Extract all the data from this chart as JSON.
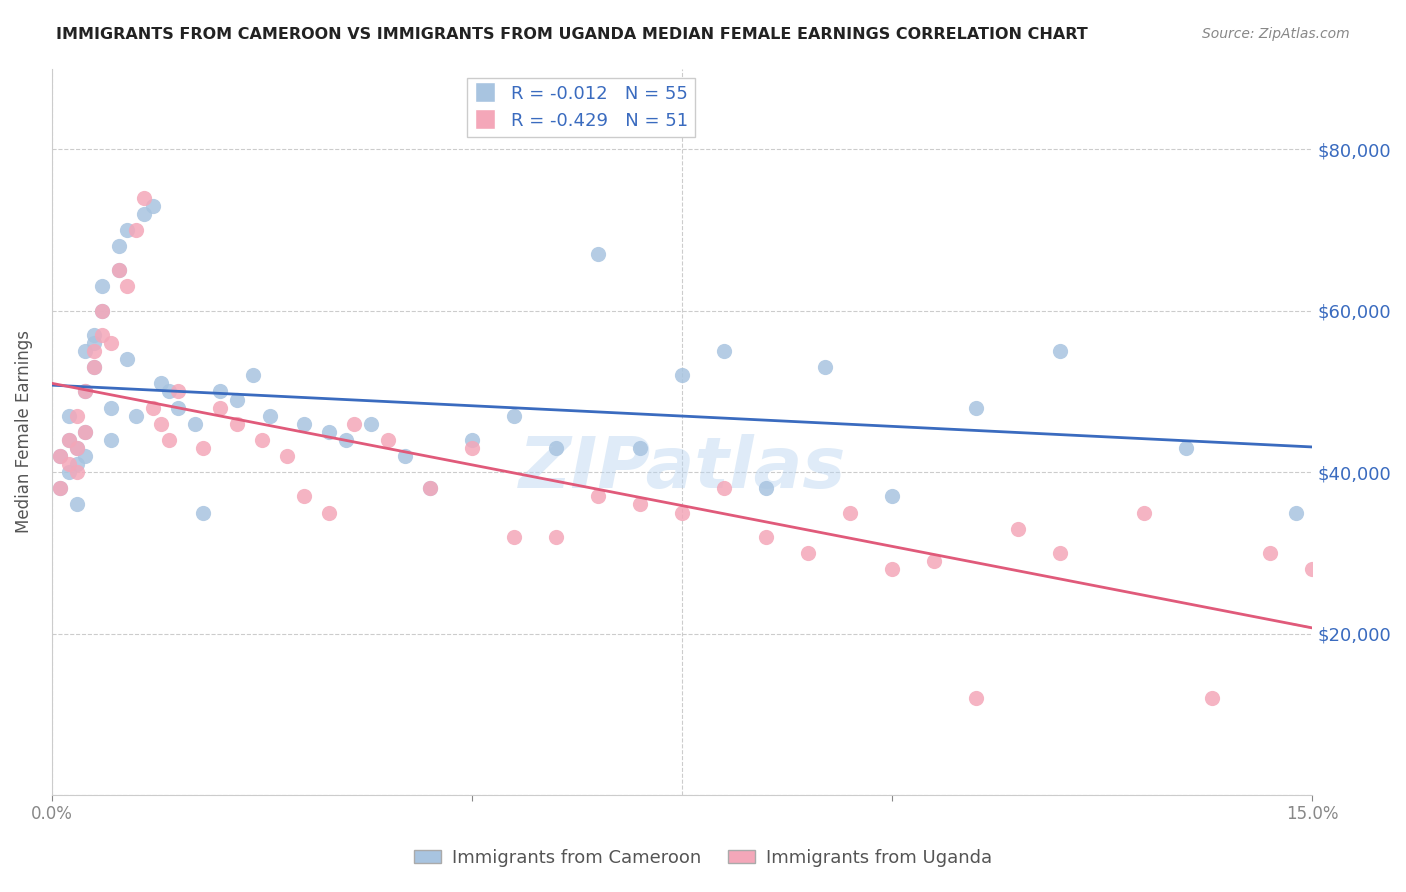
{
  "title": "IMMIGRANTS FROM CAMEROON VS IMMIGRANTS FROM UGANDA MEDIAN FEMALE EARNINGS CORRELATION CHART",
  "source": "Source: ZipAtlas.com",
  "xlabel": "",
  "ylabel": "Median Female Earnings",
  "xlim": [
    0,
    0.15
  ],
  "ylim": [
    0,
    90000
  ],
  "yticks": [
    0,
    20000,
    40000,
    60000,
    80000
  ],
  "ytick_labels": [
    "",
    "$20,000",
    "$40,000",
    "$60,000",
    "$80,000"
  ],
  "xticks": [
    0,
    0.05,
    0.1,
    0.15
  ],
  "xtick_labels": [
    "0.0%",
    "",
    "",
    "15.0%"
  ],
  "cameroon_R": -0.012,
  "cameroon_N": 55,
  "uganda_R": -0.429,
  "uganda_N": 51,
  "legend_label_1": "Immigrants from Cameroon",
  "legend_label_2": "Immigrants from Uganda",
  "color_cameroon": "#a8c4e0",
  "color_uganda": "#f4a7b9",
  "line_color_cameroon": "#3a6bbf",
  "line_color_uganda": "#e05a7a",
  "watermark": "ZIPatlas",
  "cameroon_x": [
    0.001,
    0.001,
    0.002,
    0.002,
    0.002,
    0.003,
    0.003,
    0.003,
    0.004,
    0.004,
    0.004,
    0.004,
    0.005,
    0.005,
    0.005,
    0.006,
    0.006,
    0.007,
    0.007,
    0.008,
    0.008,
    0.009,
    0.009,
    0.01,
    0.011,
    0.012,
    0.013,
    0.014,
    0.015,
    0.017,
    0.018,
    0.02,
    0.022,
    0.024,
    0.026,
    0.03,
    0.033,
    0.035,
    0.038,
    0.042,
    0.045,
    0.05,
    0.055,
    0.06,
    0.065,
    0.07,
    0.075,
    0.08,
    0.085,
    0.092,
    0.1,
    0.11,
    0.12,
    0.135,
    0.148
  ],
  "cameroon_y": [
    42000,
    38000,
    44000,
    47000,
    40000,
    43000,
    41000,
    36000,
    45000,
    42000,
    50000,
    55000,
    57000,
    56000,
    53000,
    60000,
    63000,
    48000,
    44000,
    65000,
    68000,
    70000,
    54000,
    47000,
    72000,
    73000,
    51000,
    50000,
    48000,
    46000,
    35000,
    50000,
    49000,
    52000,
    47000,
    46000,
    45000,
    44000,
    46000,
    42000,
    38000,
    44000,
    47000,
    43000,
    67000,
    43000,
    52000,
    55000,
    38000,
    53000,
    37000,
    48000,
    55000,
    43000,
    35000
  ],
  "uganda_x": [
    0.001,
    0.001,
    0.002,
    0.002,
    0.003,
    0.003,
    0.003,
    0.004,
    0.004,
    0.005,
    0.005,
    0.006,
    0.006,
    0.007,
    0.008,
    0.009,
    0.01,
    0.011,
    0.012,
    0.013,
    0.014,
    0.015,
    0.018,
    0.02,
    0.022,
    0.025,
    0.028,
    0.03,
    0.033,
    0.036,
    0.04,
    0.045,
    0.05,
    0.055,
    0.06,
    0.065,
    0.07,
    0.075,
    0.08,
    0.085,
    0.09,
    0.095,
    0.1,
    0.105,
    0.11,
    0.115,
    0.12,
    0.13,
    0.138,
    0.145,
    0.15
  ],
  "uganda_y": [
    42000,
    38000,
    44000,
    41000,
    47000,
    43000,
    40000,
    45000,
    50000,
    53000,
    55000,
    60000,
    57000,
    56000,
    65000,
    63000,
    70000,
    74000,
    48000,
    46000,
    44000,
    50000,
    43000,
    48000,
    46000,
    44000,
    42000,
    37000,
    35000,
    46000,
    44000,
    38000,
    43000,
    32000,
    32000,
    37000,
    36000,
    35000,
    38000,
    32000,
    30000,
    35000,
    28000,
    29000,
    12000,
    33000,
    30000,
    35000,
    12000,
    30000,
    28000
  ]
}
